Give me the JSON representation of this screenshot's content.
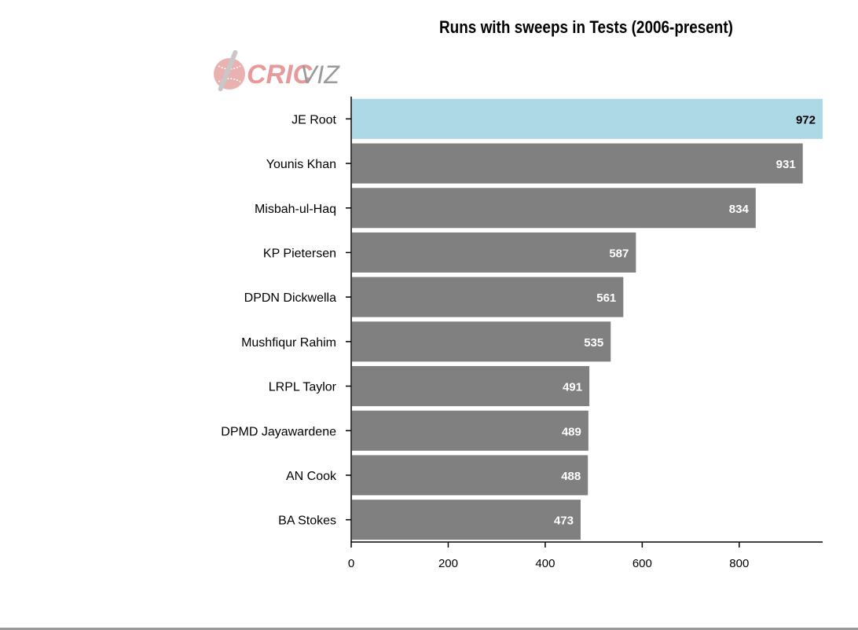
{
  "chart_data": {
    "type": "bar",
    "orientation": "horizontal",
    "title": "Runs with sweeps in Tests (2006-present)",
    "categories": [
      "JE Root",
      "Younis Khan",
      "Misbah-ul-Haq",
      "KP Pietersen",
      "DPDN Dickwella",
      "Mushfiqur Rahim",
      "LRPL Taylor",
      "DPMD Jayawardene",
      "AN Cook",
      "BA Stokes"
    ],
    "values": [
      972,
      931,
      834,
      587,
      561,
      535,
      491,
      489,
      488,
      473
    ],
    "highlight_index": 0,
    "xlim": [
      0,
      972
    ],
    "xticks": [
      0,
      200,
      400,
      600,
      800
    ],
    "xlabel": "",
    "ylabel": "",
    "grid": false,
    "colors": {
      "bar": "#808080",
      "highlight": "#add8e6",
      "label_on_bar": "#ffffff",
      "label_on_highlight": "#000000"
    }
  },
  "logo": {
    "text_bold": "CRIC",
    "text_light": "VIZ",
    "bold_color": "#e69a9a",
    "light_color": "#9a9a9a"
  }
}
